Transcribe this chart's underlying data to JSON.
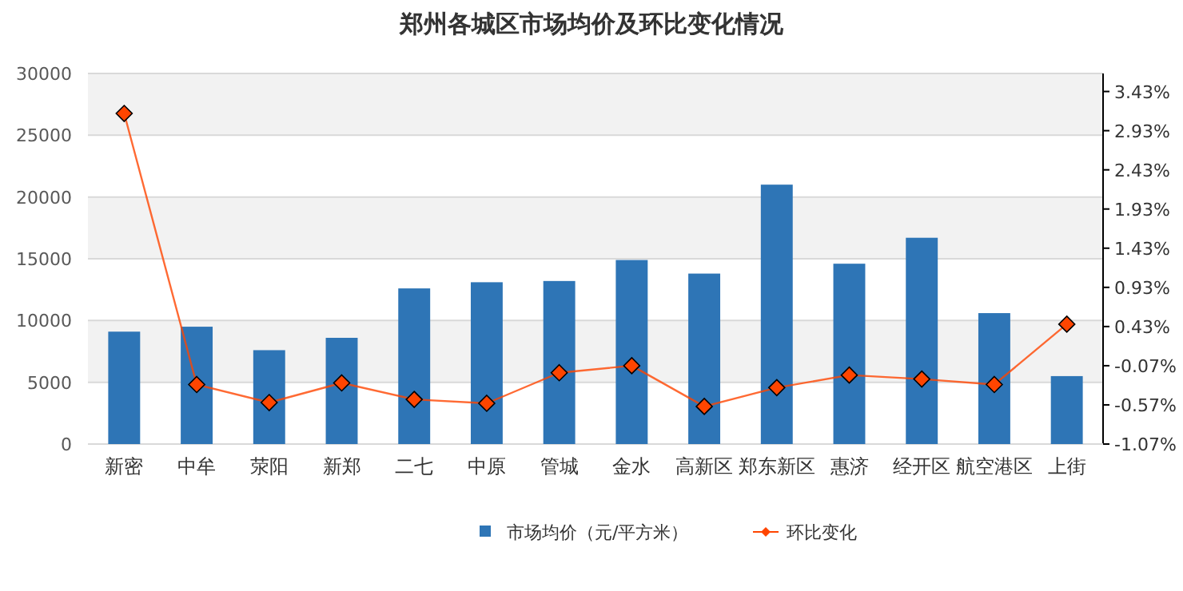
{
  "chart_data": {
    "type": "bar",
    "title": "郑州各城区市场均价及环比变化情况",
    "categories": [
      "新密",
      "中牟",
      "荥阳",
      "新郑",
      "二七",
      "中原",
      "管城",
      "金水",
      "高新区",
      "郑东新区",
      "惠济",
      "经开区",
      "航空港区",
      "上街"
    ],
    "series": [
      {
        "name": "市场均价（元/平方米）",
        "color": "#2e75b6",
        "values": [
          9100,
          9500,
          7600,
          8600,
          12600,
          13100,
          13200,
          14900,
          13800,
          21000,
          14600,
          16700,
          10600,
          5500
        ]
      },
      {
        "name": "环比变化",
        "type": "line",
        "axis": "y2",
        "color": "#ff4500",
        "marker": "diamond",
        "values": [
          3.15,
          -0.31,
          -0.54,
          -0.29,
          -0.5,
          -0.55,
          -0.16,
          -0.07,
          -0.59,
          -0.35,
          -0.19,
          -0.24,
          -0.31,
          0.46
        ]
      }
    ],
    "ylim": [
      0,
      30000
    ],
    "yticks": [
      0,
      5000,
      10000,
      15000,
      20000,
      25000,
      30000
    ],
    "y2lim": [
      -1.07,
      3.66
    ],
    "y2ticks": [
      {
        "value": -1.07,
        "label": "-1.07%"
      },
      {
        "value": -0.57,
        "label": "-0.57%"
      },
      {
        "value": -0.07,
        "label": "-0.07%"
      },
      {
        "value": 0.43,
        "label": "0.43%"
      },
      {
        "value": 0.93,
        "label": "0.93%"
      },
      {
        "value": 1.43,
        "label": "1.43%"
      },
      {
        "value": 1.93,
        "label": "1.93%"
      },
      {
        "value": 2.43,
        "label": "2.43%"
      },
      {
        "value": 2.93,
        "label": "2.93%"
      },
      {
        "value": 3.43,
        "label": "3.43%"
      }
    ],
    "grid": "y",
    "legend": "bottom"
  }
}
